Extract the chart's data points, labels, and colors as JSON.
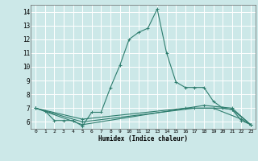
{
  "title": "",
  "xlabel": "Humidex (Indice chaleur)",
  "bg_color": "#cce8e8",
  "grid_color": "#ffffff",
  "line_color": "#2e7d6e",
  "xlim": [
    -0.5,
    23.5
  ],
  "ylim": [
    5.5,
    14.5
  ],
  "xticks": [
    0,
    1,
    2,
    3,
    4,
    5,
    6,
    7,
    8,
    9,
    10,
    11,
    12,
    13,
    14,
    15,
    16,
    17,
    18,
    19,
    20,
    21,
    22,
    23
  ],
  "yticks": [
    6,
    7,
    8,
    9,
    10,
    11,
    12,
    13,
    14
  ],
  "series": [
    [
      7.0,
      6.8,
      6.1,
      6.1,
      6.1,
      5.7,
      6.7,
      6.7,
      8.5,
      10.1,
      12.0,
      12.5,
      12.8,
      14.2,
      11.0,
      8.9,
      8.5,
      8.5,
      8.5,
      7.5,
      7.0,
      6.9,
      6.1,
      5.8
    ],
    [
      7.0,
      null,
      null,
      null,
      null,
      5.8,
      null,
      null,
      null,
      null,
      null,
      null,
      null,
      null,
      null,
      null,
      null,
      null,
      7.2,
      null,
      null,
      7.0,
      null,
      5.8
    ],
    [
      7.0,
      null,
      null,
      null,
      null,
      6.0,
      null,
      null,
      null,
      null,
      null,
      null,
      null,
      null,
      null,
      null,
      null,
      7.0,
      null,
      7.0,
      null,
      null,
      6.2,
      5.8
    ],
    [
      7.0,
      null,
      null,
      null,
      null,
      6.2,
      null,
      null,
      null,
      null,
      null,
      null,
      null,
      null,
      null,
      null,
      7.0,
      null,
      null,
      null,
      7.0,
      6.9,
      null,
      5.8
    ]
  ]
}
